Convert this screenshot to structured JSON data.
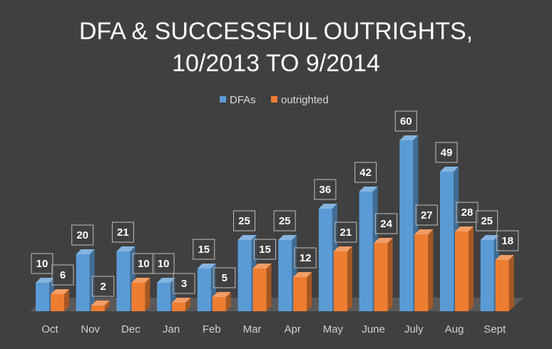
{
  "chart_data": {
    "type": "bar",
    "title": "DFA & SUCCESSFUL OUTRIGHTS,",
    "subtitle": "10/2013 TO 9/2014",
    "categories": [
      "Oct",
      "Nov",
      "Dec",
      "Jan",
      "Feb",
      "Mar",
      "Apr",
      "May",
      "June",
      "July",
      "Aug",
      "Sept"
    ],
    "series": [
      {
        "name": "DFAs",
        "values": [
          10,
          20,
          21,
          10,
          15,
          25,
          25,
          36,
          42,
          60,
          49,
          25
        ],
        "color": "#5b9bd5"
      },
      {
        "name": "outrighted",
        "values": [
          6,
          2,
          10,
          3,
          5,
          15,
          12,
          21,
          24,
          27,
          28,
          18
        ],
        "color": "#ed7d31"
      }
    ],
    "ylim": [
      0,
      64
    ],
    "grid": false,
    "legend_position": "top",
    "data_labels": true,
    "style": "3d-clustered-column",
    "background_color": "#404040",
    "floor_color": "#595959"
  }
}
